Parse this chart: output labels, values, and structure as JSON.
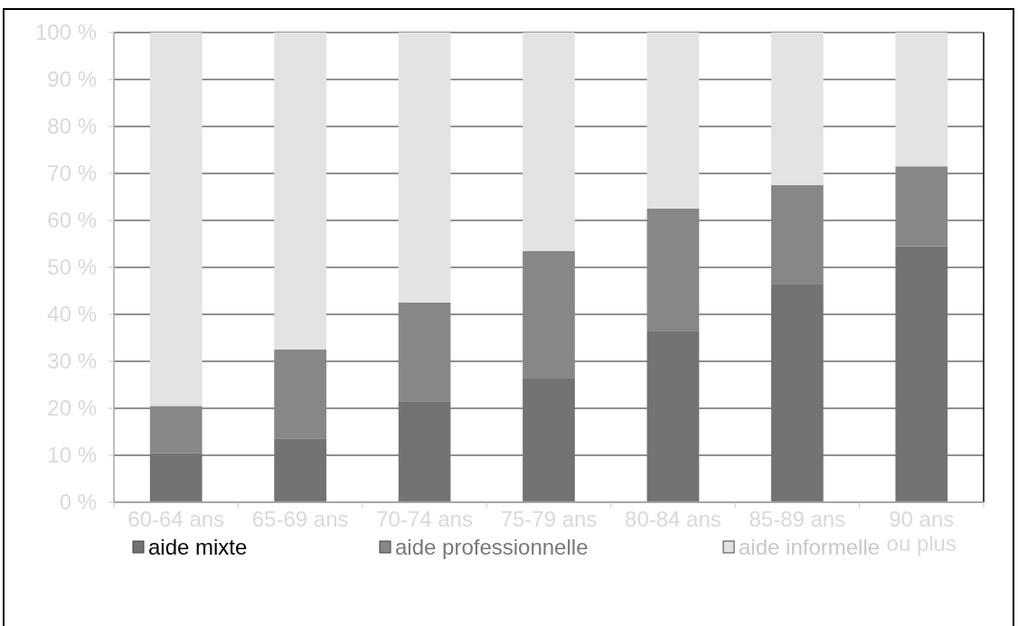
{
  "chart_data": {
    "type": "bar",
    "stacked": true,
    "categories": [
      "60-64 ans",
      "65-69 ans",
      "70-74 ans",
      "75-79 ans",
      "80-84 ans",
      "85-89 ans",
      "90 ans ou plus"
    ],
    "series": [
      {
        "name": "aide mixte",
        "color": "#737373",
        "values": [
          10.5,
          13.5,
          21.5,
          26.5,
          36.5,
          46.5,
          54.5
        ]
      },
      {
        "name": "aide professionnelle",
        "color": "#878787",
        "values": [
          10,
          19,
          21,
          27,
          26,
          21,
          17
        ]
      },
      {
        "name": "aide informelle",
        "color": "#e3e3e3",
        "values": [
          79.5,
          67.5,
          57.5,
          46.5,
          37.5,
          32.5,
          28.5
        ]
      }
    ],
    "ylim": [
      0,
      100
    ],
    "yticks": [
      {
        "value": 0,
        "label": "0 %"
      },
      {
        "value": 10,
        "label": "10 %"
      },
      {
        "value": 20,
        "label": "20 %"
      },
      {
        "value": 30,
        "label": "30 %"
      },
      {
        "value": 40,
        "label": "40 %"
      },
      {
        "value": 50,
        "label": "50 %"
      },
      {
        "value": 60,
        "label": "60 %"
      },
      {
        "value": 70,
        "label": "70 %"
      },
      {
        "value": 80,
        "label": "80 %"
      },
      {
        "value": 90,
        "label": "90 %"
      },
      {
        "value": 100,
        "label": "100 %"
      }
    ],
    "grid": "y",
    "legend": "bottom"
  }
}
